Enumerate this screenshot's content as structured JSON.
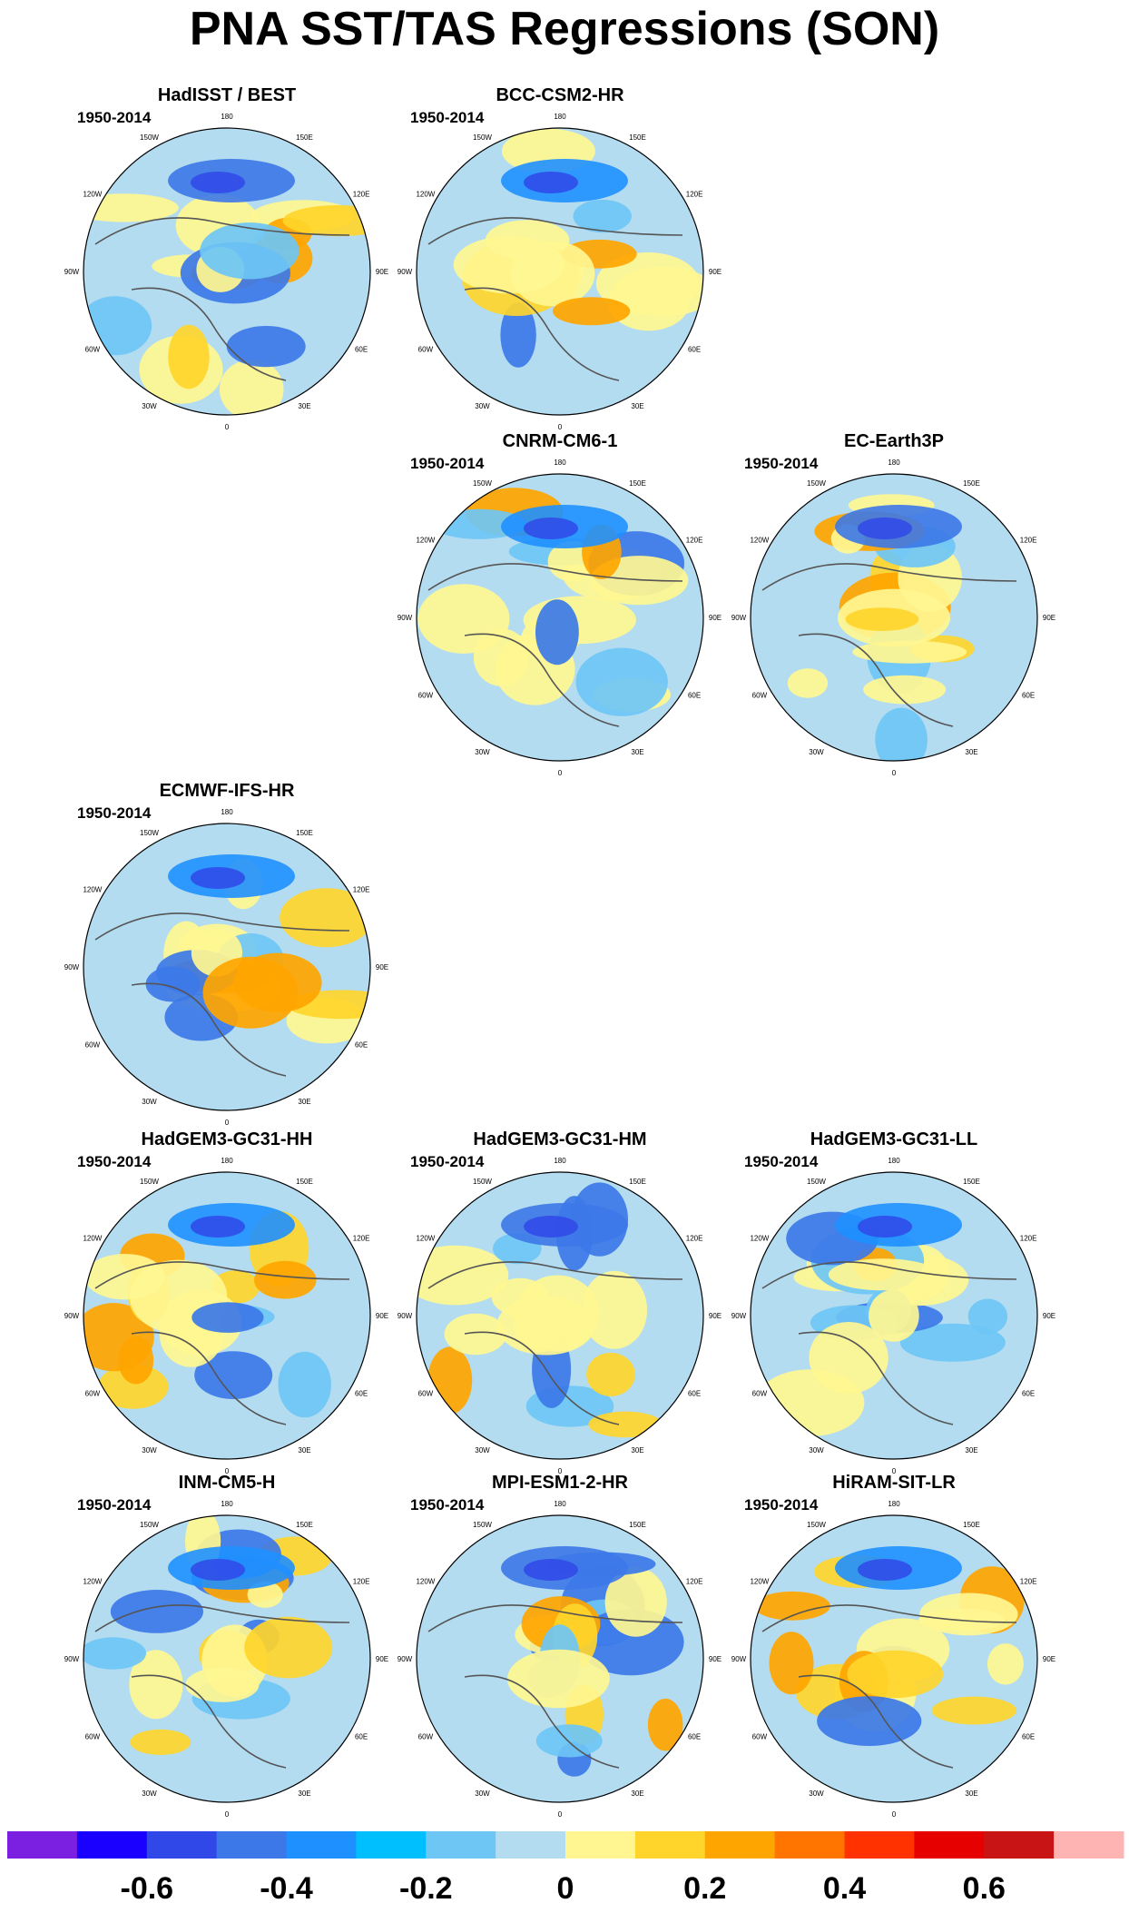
{
  "title": "PNA SST/TAS Regressions (SON)",
  "chart_data": {
    "type": "heatmap",
    "projection": "north polar stereographic",
    "longitude_labels": [
      "180",
      "150E",
      "120E",
      "90E",
      "60E",
      "30E",
      "0",
      "30W",
      "60W",
      "90W",
      "120W",
      "150W"
    ],
    "panels": [
      {
        "title": "HadISST / BEST",
        "period": "1950-2014",
        "row": 0,
        "col": 0
      },
      {
        "title": "BCC-CSM2-HR",
        "period": "1950-2014",
        "row": 0,
        "col": 1
      },
      {
        "title": "CNRM-CM6-1",
        "period": "1950-2014",
        "row": 1,
        "col": 1
      },
      {
        "title": "EC-Earth3P",
        "period": "1950-2014",
        "row": 1,
        "col": 2
      },
      {
        "title": "ECMWF-IFS-HR",
        "period": "1950-2014",
        "row": 2,
        "col": 0
      },
      {
        "title": "HadGEM3-GC31-HH",
        "period": "1950-2014",
        "row": 3,
        "col": 0
      },
      {
        "title": "HadGEM3-GC31-HM",
        "period": "1950-2014",
        "row": 3,
        "col": 1
      },
      {
        "title": "HadGEM3-GC31-LL",
        "period": "1950-2014",
        "row": 3,
        "col": 2
      },
      {
        "title": "INM-CM5-H",
        "period": "1950-2014",
        "row": 4,
        "col": 0
      },
      {
        "title": "MPI-ESM1-2-HR",
        "period": "1950-2014",
        "row": 4,
        "col": 1
      },
      {
        "title": "HiRAM-SIT-LR",
        "period": "1950-2014",
        "row": 4,
        "col": 2
      }
    ],
    "colorbar": {
      "levels": [
        -0.7,
        -0.6,
        -0.5,
        -0.4,
        -0.3,
        -0.2,
        -0.1,
        0,
        0.1,
        0.2,
        0.3,
        0.4,
        0.5,
        0.6,
        0.7
      ],
      "colors": [
        "#7b1fe0",
        "#1a00ff",
        "#3048e8",
        "#3c78e8",
        "#1e90ff",
        "#00bfff",
        "#6ec6f5",
        "#b4dcf0",
        "#fff691",
        "#ffd52b",
        "#ffa500",
        "#ff7500",
        "#ff3200",
        "#e60000",
        "#c81414",
        "#ffb4b4"
      ],
      "tick_labels": [
        "-0.6",
        "-0.4",
        "-0.2",
        "0",
        "0.2",
        "0.4",
        "0.6"
      ],
      "tick_values": [
        -0.6,
        -0.4,
        -0.2,
        0,
        0.2,
        0.4,
        0.6
      ]
    }
  }
}
